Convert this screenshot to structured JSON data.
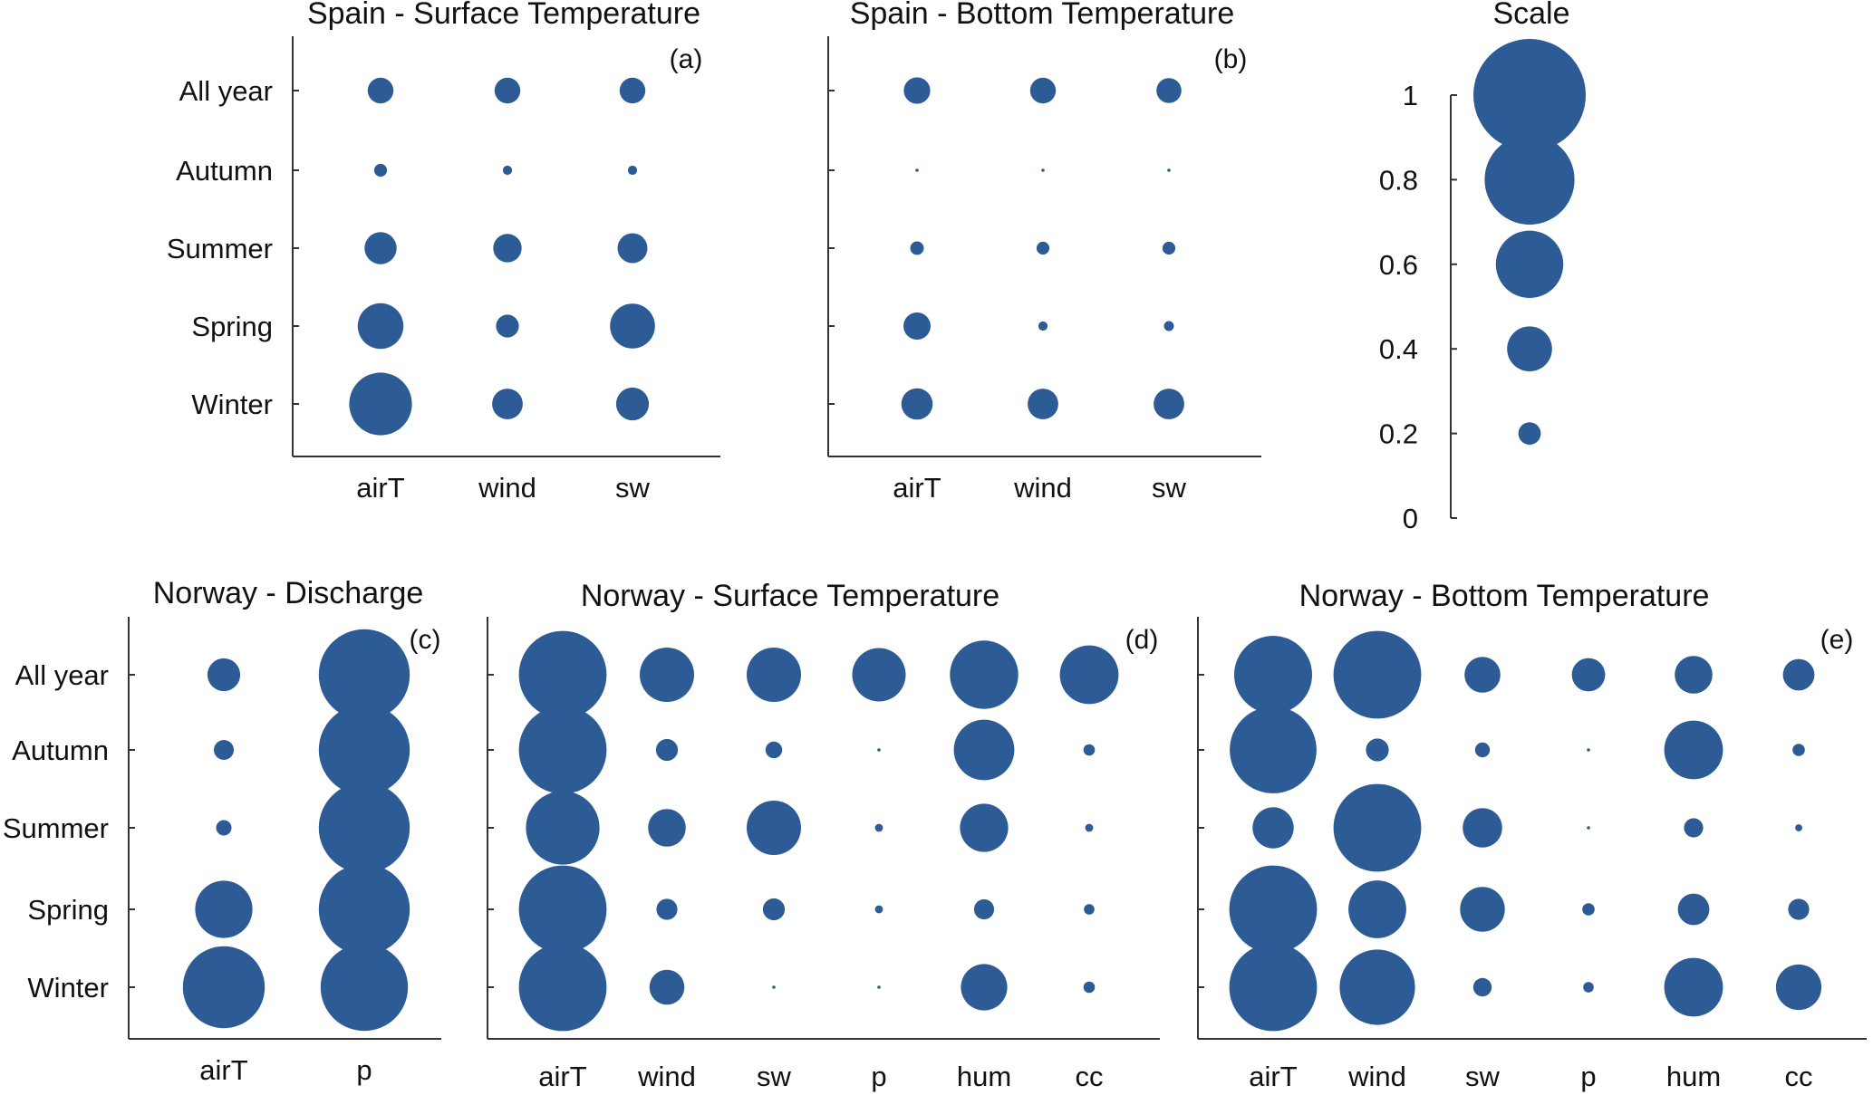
{
  "style": {
    "bubble_color": "#2d5b95",
    "axis_color": "#333333"
  },
  "chart_data": [
    {
      "type": "bubble",
      "title": "Spain - Surface Temperature",
      "panel_label": "(a)",
      "categories": [
        "airT",
        "wind",
        "sw"
      ],
      "rows": [
        "All year",
        "Autumn",
        "Summer",
        "Spring",
        "Winter"
      ],
      "values": [
        [
          0.36,
          0.36,
          0.36
        ],
        [
          0.18,
          0.13,
          0.13
        ],
        [
          0.45,
          0.4,
          0.42
        ],
        [
          0.64,
          0.32,
          0.63
        ],
        [
          0.88,
          0.43,
          0.46
        ]
      ]
    },
    {
      "type": "bubble",
      "title": "Spain - Bottom Temperature",
      "panel_label": "(b)",
      "categories": [
        "airT",
        "wind",
        "sw"
      ],
      "rows": [
        "All year",
        "Autumn",
        "Summer",
        "Spring",
        "Winter"
      ],
      "values": [
        [
          0.37,
          0.36,
          0.35
        ],
        [
          0.02,
          0.02,
          0.02
        ],
        [
          0.19,
          0.18,
          0.18
        ],
        [
          0.38,
          0.13,
          0.14
        ],
        [
          0.44,
          0.43,
          0.43
        ]
      ]
    },
    {
      "type": "bubble",
      "title": "Scale",
      "yticks": [
        "0",
        "0.2",
        "0.4",
        "0.6",
        "0.8",
        "1"
      ],
      "values": [
        0.2,
        0.4,
        0.6,
        0.8,
        1.0
      ]
    },
    {
      "type": "bubble",
      "title": "Norway - Discharge",
      "panel_label": "(c)",
      "categories": [
        "airT",
        "p"
      ],
      "rows": [
        "All year",
        "Autumn",
        "Summer",
        "Spring",
        "Winter"
      ],
      "values": [
        [
          0.36,
          1.0
        ],
        [
          0.22,
          1.0
        ],
        [
          0.17,
          1.0
        ],
        [
          0.63,
          1.0
        ],
        [
          0.9,
          0.96
        ]
      ]
    },
    {
      "type": "bubble",
      "title": "Norway - Surface Temperature",
      "panel_label": "(d)",
      "categories": [
        "airT",
        "wind",
        "sw",
        "p",
        "hum",
        "cc"
      ],
      "rows": [
        "All year",
        "Autumn",
        "Summer",
        "Spring",
        "Winter"
      ],
      "values": [
        [
          1.0,
          0.62,
          0.62,
          0.61,
          0.78,
          0.67
        ],
        [
          1.0,
          0.25,
          0.19,
          0.03,
          0.69,
          0.13
        ],
        [
          0.84,
          0.43,
          0.62,
          0.09,
          0.55,
          0.09
        ],
        [
          1.0,
          0.24,
          0.25,
          0.09,
          0.23,
          0.12
        ],
        [
          1.0,
          0.4,
          0.02,
          0.02,
          0.53,
          0.13
        ]
      ]
    },
    {
      "type": "bubble",
      "title": "Norway - Bottom Temperature",
      "panel_label": "(e)",
      "categories": [
        "airT",
        "wind",
        "sw",
        "p",
        "hum",
        "cc"
      ],
      "rows": [
        "All year",
        "Autumn",
        "Summer",
        "Spring",
        "Winter"
      ],
      "values": [
        [
          0.89,
          1.0,
          0.41,
          0.38,
          0.43,
          0.36
        ],
        [
          0.99,
          0.26,
          0.17,
          0.02,
          0.67,
          0.14
        ],
        [
          0.47,
          1.0,
          0.45,
          0.01,
          0.22,
          0.08
        ],
        [
          1.0,
          0.66,
          0.51,
          0.14,
          0.36,
          0.24
        ],
        [
          1.0,
          0.86,
          0.21,
          0.12,
          0.67,
          0.52
        ]
      ]
    }
  ]
}
